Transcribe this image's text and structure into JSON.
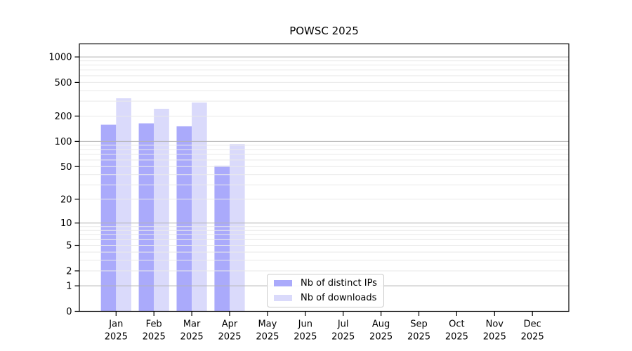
{
  "chart_data": {
    "type": "bar",
    "title": "POWSC 2025",
    "categories": [
      "Jan",
      "Feb",
      "Mar",
      "Apr",
      "May",
      "Jun",
      "Jul",
      "Aug",
      "Sep",
      "Oct",
      "Nov",
      "Dec"
    ],
    "category_year": "2025",
    "series": [
      {
        "name": "Nb of distinct IPs",
        "color": "#aaaafb",
        "values": [
          158,
          164,
          151,
          51,
          0,
          0,
          0,
          0,
          0,
          0,
          0,
          0
        ]
      },
      {
        "name": "Nb of downloads",
        "color": "#dadafb",
        "values": [
          325,
          244,
          289,
          93,
          0,
          0,
          0,
          0,
          0,
          0,
          0,
          0
        ]
      }
    ],
    "xlabel": "",
    "ylabel": "",
    "y_ticks": [
      0,
      1,
      2,
      5,
      10,
      20,
      50,
      100,
      200,
      500,
      1000
    ],
    "y_scale": "log10(value+1)",
    "ylim": [
      0,
      1430
    ],
    "grid": "horizontal, light minors at 2-9 per decade, darker majors at powers of 10",
    "legend_position": "inside, lower center"
  },
  "colors": {
    "background": "#ffffff",
    "spine": "#000000",
    "grid_major": "#b3b3b3",
    "grid_minor": "#e9e9e9",
    "text": "#000000",
    "legend_border": "#cccccc"
  }
}
